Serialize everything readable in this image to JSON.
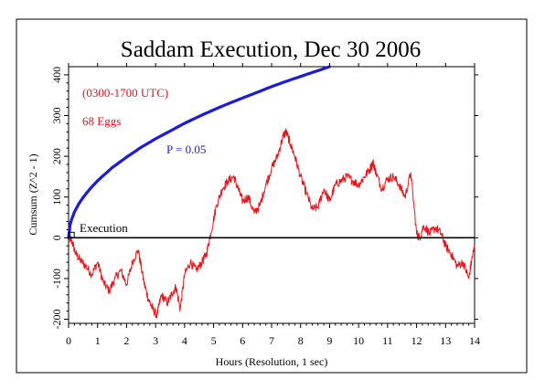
{
  "chart_data": {
    "type": "line",
    "title": "Saddam Execution, Dec 30 2006",
    "xlabel": "Hours (Resolution, 1 sec)",
    "ylabel": "Cumsum (Z^2 - 1)",
    "xlim": [
      0,
      14
    ],
    "ylim": [
      -210,
      420
    ],
    "x_ticks": [
      0,
      1,
      2,
      3,
      4,
      5,
      6,
      7,
      8,
      9,
      10,
      11,
      12,
      13,
      14
    ],
    "y_ticks": [
      -200,
      -100,
      0,
      100,
      200,
      300,
      400
    ],
    "grid": false,
    "annotations": {
      "time_window": "(0300-1700 UTC)",
      "eggs": "68 Eggs",
      "p_label": "P = 0.05",
      "event_label": "Execution"
    },
    "event_x": 0.1,
    "series": [
      {
        "role": "cumsum",
        "color": "#e8141a",
        "x": [
          0,
          0.1,
          0.25,
          0.4,
          0.6,
          0.8,
          1.0,
          1.2,
          1.4,
          1.6,
          1.8,
          2.0,
          2.2,
          2.4,
          2.6,
          2.75,
          2.9,
          3.05,
          3.2,
          3.4,
          3.55,
          3.7,
          3.85,
          4.0,
          4.2,
          4.4,
          4.6,
          4.75,
          4.9,
          5.1,
          5.3,
          5.5,
          5.7,
          5.85,
          6.0,
          6.2,
          6.4,
          6.6,
          6.8,
          7.0,
          7.2,
          7.4,
          7.5,
          7.65,
          7.8,
          8.0,
          8.2,
          8.4,
          8.6,
          8.8,
          9.0,
          9.2,
          9.4,
          9.6,
          9.8,
          10.0,
          10.2,
          10.4,
          10.5,
          10.6,
          10.8,
          11.0,
          11.2,
          11.4,
          11.6,
          11.8,
          12.0,
          12.1,
          12.25,
          12.45,
          12.65,
          12.85,
          13.0,
          13.2,
          13.4,
          13.6,
          13.8,
          13.9,
          14.0
        ],
        "y": [
          0,
          -5,
          -40,
          -55,
          -70,
          -90,
          -60,
          -110,
          -130,
          -100,
          -80,
          -115,
          -60,
          -30,
          -110,
          -150,
          -175,
          -190,
          -140,
          -160,
          -140,
          -120,
          -175,
          -90,
          -60,
          -80,
          -60,
          -40,
          10,
          80,
          120,
          140,
          150,
          120,
          90,
          100,
          60,
          80,
          130,
          170,
          200,
          250,
          260,
          230,
          200,
          150,
          110,
          70,
          75,
          120,
          90,
          130,
          140,
          150,
          140,
          130,
          150,
          170,
          185,
          160,
          120,
          145,
          150,
          130,
          100,
          160,
          10,
          0,
          30,
          10,
          25,
          10,
          -20,
          -40,
          -70,
          -60,
          -100,
          -55,
          -20
        ]
      },
      {
        "role": "p_0.05_envelope",
        "color": "#1a1ae0",
        "x": [
          0,
          0.05,
          0.1,
          0.2,
          0.35,
          0.5,
          0.75,
          1.0,
          1.5,
          2.0,
          2.5,
          3.0,
          3.5,
          4.0,
          4.5,
          5.0,
          5.5,
          6.0,
          6.5,
          7.0,
          7.5,
          8.0,
          8.5,
          9.0
        ],
        "y": [
          0,
          31,
          44,
          63,
          83,
          99,
          121,
          140,
          172,
          198,
          222,
          243,
          262,
          281,
          298,
          314,
          329,
          343,
          357,
          371,
          384,
          396,
          408,
          420
        ]
      }
    ]
  }
}
